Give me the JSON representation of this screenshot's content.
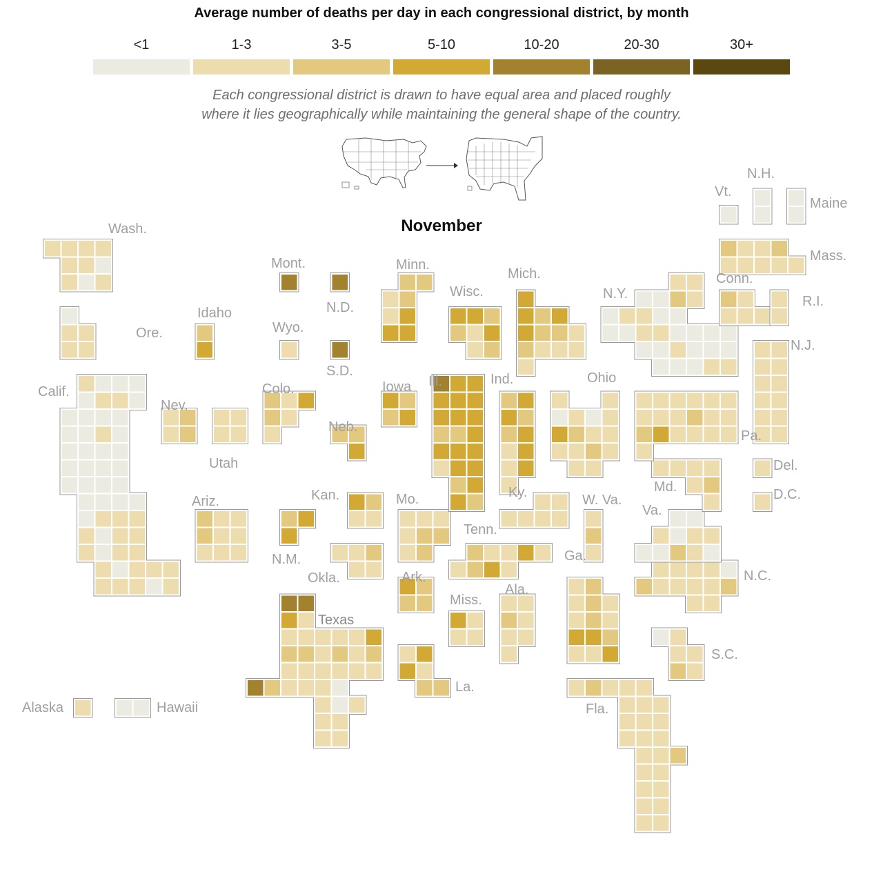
{
  "title": "Average number of deaths per day in each congressional district, by month",
  "legend": [
    {
      "label": "<1",
      "color": "#ecebe1"
    },
    {
      "label": "1-3",
      "color": "#ecdcae"
    },
    {
      "label": "3-5",
      "color": "#e3c97f"
    },
    {
      "label": "5-10",
      "color": "#d3a935"
    },
    {
      "label": "10-20",
      "color": "#a2822f"
    },
    {
      "label": "20-30",
      "color": "#7b6323"
    },
    {
      "label": "30+",
      "color": "#5b480f"
    }
  ],
  "note_line1": "Each congressional district is drawn to have equal area and placed roughly",
  "note_line2": "where it lies geographically while maintaining the general shape of the country.",
  "month": "November",
  "state_labels": {
    "wash": "Wash.",
    "ore": "Ore.",
    "calif": "Calif.",
    "idaho": "Idaho",
    "nev": "Nev.",
    "utah": "Utah",
    "ariz": "Ariz.",
    "mont": "Mont.",
    "wyo": "Wyo.",
    "colo": "Colo.",
    "nm": "N.M.",
    "nd": "N.D.",
    "sd": "S.D.",
    "neb": "Neb.",
    "kan": "Kan.",
    "okla": "Okla.",
    "texas": "Texas",
    "minn": "Minn.",
    "iowa": "Iowa",
    "mo": "Mo.",
    "ark": "Ark.",
    "la": "La.",
    "wisc": "Wisc.",
    "ill": "Ill.",
    "mich": "Mich.",
    "ind": "Ind.",
    "ohio": "Ohio",
    "ky": "Ky.",
    "tenn": "Tenn.",
    "miss": "Miss.",
    "ala": "Ala.",
    "ga": "Ga.",
    "fla": "Fla.",
    "sc": "S.C.",
    "nc": "N.C.",
    "va": "Va.",
    "wva": "W. Va.",
    "md": "Md.",
    "del": "Del.",
    "dc": "D.C.",
    "pa": "Pa.",
    "ny": "N.Y.",
    "nj": "N.J.",
    "conn": "Conn.",
    "ri": "R.I.",
    "mass": "Mass.",
    "vt": "Vt.",
    "nh": "N.H.",
    "maine": "Maine",
    "alaska": "Alaska",
    "hawaii": "Hawaii"
  },
  "chart_data": {
    "type": "heatmap",
    "value_scale": "legend category index: 0 = <1, 1 = 1-3, 2 = 3-5, 3 = 5-10, 4 = 10-20, 5 = 20-30, 6 = 30+",
    "states": {
      "Wash.": [
        1,
        1,
        1,
        1,
        1,
        1,
        0,
        1,
        0,
        1
      ],
      "Ore.": [
        0,
        1,
        1,
        1,
        1
      ],
      "Calif.": [
        1,
        0,
        0,
        0,
        0,
        1,
        1,
        0,
        0,
        0,
        0,
        0,
        0,
        0,
        1,
        0,
        0,
        0,
        0,
        0,
        0,
        0,
        0,
        0,
        0,
        0,
        0,
        0,
        0,
        0,
        0,
        0,
        0,
        1,
        1,
        1,
        1,
        0,
        1,
        1,
        1,
        0,
        1,
        1,
        1,
        0,
        1,
        1,
        1,
        1,
        1,
        1,
        0,
        1,
        1,
        0,
        0,
        0,
        1,
        0,
        0
      ],
      "Idaho": [
        2,
        3
      ],
      "Nev.": [
        1,
        2,
        1,
        2
      ],
      "Utah": [
        1,
        1,
        1,
        1
      ],
      "Ariz.": [
        2,
        1,
        1,
        2,
        1,
        1,
        1,
        1,
        1
      ],
      "Mont.": [
        4
      ],
      "Wyo.": [
        1
      ],
      "Colo.": [
        2,
        1,
        3,
        2,
        1,
        1,
        2
      ],
      "N.M.": [
        2,
        3,
        3
      ],
      "N.D.": [
        4
      ],
      "S.D.": [
        4
      ],
      "Neb.": [
        2,
        2,
        3
      ],
      "Kan.": [
        3,
        2,
        1,
        1
      ],
      "Okla.": [
        1,
        1,
        2,
        1,
        1
      ],
      "Texas": [
        4,
        4,
        3,
        1,
        1,
        1,
        1,
        1,
        1,
        3,
        2,
        2,
        1,
        2,
        1,
        2,
        1,
        1,
        1,
        1,
        1,
        1,
        4,
        2,
        1,
        1,
        1,
        0,
        1,
        0,
        1,
        1,
        1,
        1,
        1,
        1
      ],
      "Minn.": [
        2,
        2,
        1,
        2,
        1,
        3,
        3,
        3
      ],
      "Iowa": [
        3,
        2,
        2,
        3
      ],
      "Mo.": [
        1,
        1,
        1,
        1,
        2,
        2,
        1,
        2
      ],
      "Ark.": [
        3,
        2,
        2,
        2
      ],
      "La.": [
        1,
        3,
        3,
        1,
        2,
        2
      ],
      "Wisc.": [
        3,
        3,
        2,
        2,
        1,
        3,
        1,
        2
      ],
      "Ill.": [
        4,
        3,
        3,
        3,
        3,
        3,
        3,
        3,
        3,
        2,
        2,
        3,
        3,
        3,
        3,
        1,
        3,
        3,
        2,
        3,
        3,
        2
      ],
      "Mich.": [
        3,
        3,
        2,
        3,
        3,
        2,
        2,
        1,
        2,
        1,
        1,
        1,
        1,
        1
      ],
      "Ind.": [
        2,
        3,
        3,
        2,
        2,
        3,
        1,
        3,
        1,
        3,
        1
      ],
      "Ohio": [
        1,
        1,
        0,
        1,
        0,
        1,
        3,
        2,
        1,
        1,
        1,
        1,
        2,
        1,
        1,
        1
      ],
      "Ky.": [
        1,
        1,
        1,
        1,
        1,
        1
      ],
      "Tenn.": [
        2,
        1,
        1,
        3,
        1,
        1,
        2,
        3,
        1
      ],
      "Miss.": [
        3,
        1,
        1,
        1
      ],
      "Ala.": [
        1,
        1,
        2,
        1,
        1,
        1,
        1
      ],
      "Ga.": [
        1,
        2,
        1,
        2,
        1,
        1,
        2,
        1,
        3,
        3,
        2,
        1,
        1,
        3
      ],
      "Fla.": [
        1,
        2,
        1,
        1,
        1,
        1,
        1,
        1,
        1,
        1,
        1,
        1,
        1,
        1,
        1,
        1,
        2,
        1,
        1,
        1,
        1,
        1,
        1,
        1,
        1,
        1,
        1
      ],
      "S.C.": [
        0,
        1,
        1,
        1,
        2,
        1,
        1
      ],
      "N.C.": [
        1,
        1,
        1,
        1,
        0,
        2,
        1,
        1,
        1,
        1,
        2,
        1,
        1
      ],
      "Va.": [
        0,
        0,
        1,
        0,
        1,
        1,
        0,
        0,
        2,
        1,
        0
      ],
      "W. Va.": [
        1,
        2,
        1
      ],
      "Md.": [
        1,
        1,
        1,
        1,
        1,
        2,
        1,
        1
      ],
      "Del.": [
        1
      ],
      "D.C.": [
        1
      ],
      "Pa.": [
        1,
        1,
        1,
        1,
        1,
        1,
        1,
        1,
        1,
        2,
        1,
        1,
        2,
        3,
        1,
        1,
        1,
        1,
        1
      ],
      "N.Y.": [
        1,
        1,
        0,
        0,
        2,
        1,
        0,
        1,
        1,
        0,
        0,
        0,
        0,
        1,
        1,
        0,
        0,
        0,
        0,
        0,
        0,
        1,
        0,
        0,
        0,
        0,
        0,
        0
      ],
      "N.J.": [
        1,
        1,
        1,
        1,
        1,
        1,
        1,
        1,
        1,
        1,
        1,
        1
      ],
      "Conn.": [
        2,
        1,
        1,
        1,
        1
      ],
      "R.I.": [
        1,
        1
      ],
      "Mass.": [
        2,
        1,
        1,
        2,
        1,
        1,
        1,
        1,
        1
      ],
      "Vt.": [
        0
      ],
      "N.H.": [
        0,
        0
      ],
      "Maine": [
        0,
        0
      ],
      "Alaska": [
        1
      ],
      "Hawaii": [
        0,
        0
      ]
    }
  }
}
